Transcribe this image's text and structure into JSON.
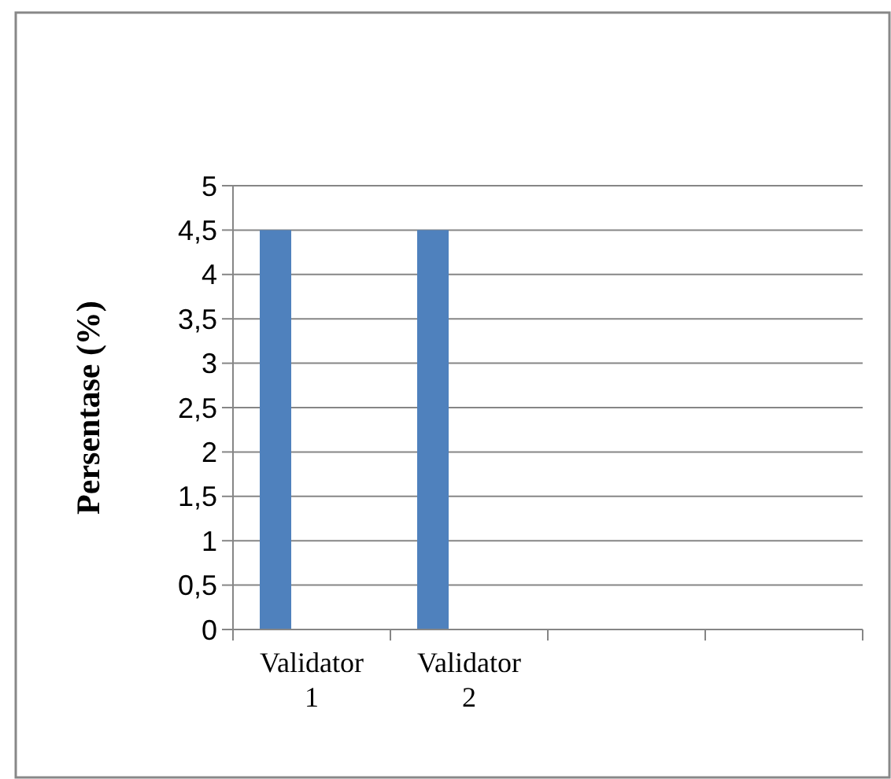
{
  "chart_data": {
    "type": "bar",
    "ylabel": "Persentase (%)",
    "categories": [
      "Validator 1",
      "Validator 2",
      null,
      null
    ],
    "values": [
      4.5,
      4.5,
      null,
      null
    ],
    "color": "#4f81bd",
    "ylim": [
      0,
      5
    ],
    "yticks": [
      0,
      {
        "value": 0.5,
        "label": "0,5"
      },
      1,
      {
        "value": 1.5,
        "label": "1,5"
      },
      2,
      {
        "value": 2.5,
        "label": "2,5"
      },
      3,
      {
        "value": 3.5,
        "label": "3,5"
      },
      4,
      {
        "value": 4.5,
        "label": "4,5"
      },
      5
    ],
    "grid": "y"
  }
}
